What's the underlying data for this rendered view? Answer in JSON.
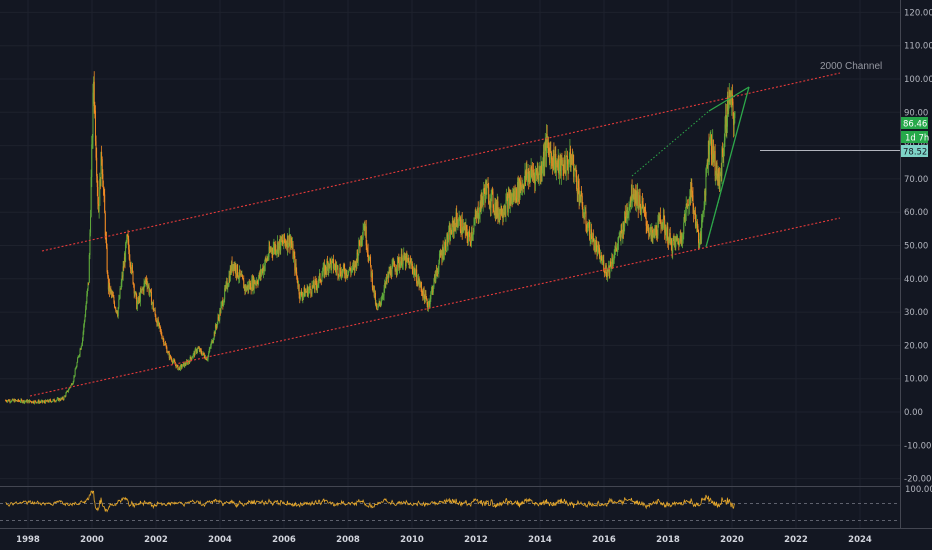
{
  "colors": {
    "background": "#131722",
    "grid": "#1e222d",
    "up": "#5fa83a",
    "down": "#ef8a24",
    "channel": "#e63a3a",
    "wedge": "#2ea84a",
    "wedge_dotted": "#2ea84a",
    "rsi": "#e8a92b",
    "badge_green": "#26a94a",
    "badge_teal": "#7ed3c7",
    "axis_text": "#b2b5be"
  },
  "chart_data": {
    "type": "candlestick",
    "x_axis": {
      "unit": "year",
      "range": [
        1997.3,
        2025.5
      ],
      "tick_labels": [
        "1998",
        "2000",
        "2002",
        "2004",
        "2006",
        "2008",
        "2010",
        "2012",
        "2014",
        "2016",
        "2018",
        "2020",
        "2022",
        "2024"
      ]
    },
    "y_axis": {
      "unit": "price",
      "range": [
        -27,
        123
      ],
      "tick_labels": [
        "120.00",
        "110.00",
        "100.00",
        "90.00",
        "80.00",
        "70.00",
        "60.00",
        "50.00",
        "40.00",
        "30.00",
        "20.00",
        "10.00",
        "0.00",
        "-10.00",
        "-20.00"
      ]
    },
    "price_path": [
      [
        1997.3,
        3.5
      ],
      [
        1998.5,
        3
      ],
      [
        1999.1,
        4
      ],
      [
        1999.4,
        9
      ],
      [
        1999.7,
        22
      ],
      [
        1999.9,
        40
      ],
      [
        2000.05,
        100
      ],
      [
        2000.2,
        60
      ],
      [
        2000.3,
        78
      ],
      [
        2000.5,
        38
      ],
      [
        2000.8,
        30
      ],
      [
        2001.1,
        52
      ],
      [
        2001.4,
        32
      ],
      [
        2001.7,
        40
      ],
      [
        2002.0,
        28
      ],
      [
        2002.4,
        17
      ],
      [
        2002.7,
        13
      ],
      [
        2003.0,
        15
      ],
      [
        2003.3,
        19
      ],
      [
        2003.6,
        16
      ],
      [
        2004.0,
        30
      ],
      [
        2004.4,
        45
      ],
      [
        2004.8,
        37
      ],
      [
        2005.2,
        40
      ],
      [
        2005.6,
        49
      ],
      [
        2006.2,
        52
      ],
      [
        2006.5,
        35
      ],
      [
        2007.0,
        38
      ],
      [
        2007.4,
        45
      ],
      [
        2007.8,
        42
      ],
      [
        2008.2,
        43
      ],
      [
        2008.5,
        57
      ],
      [
        2008.9,
        30
      ],
      [
        2009.3,
        42
      ],
      [
        2009.7,
        46
      ],
      [
        2010.0,
        44
      ],
      [
        2010.5,
        32
      ],
      [
        2010.9,
        47
      ],
      [
        2011.4,
        58
      ],
      [
        2011.8,
        52
      ],
      [
        2012.3,
        67
      ],
      [
        2012.7,
        60
      ],
      [
        2013.2,
        65
      ],
      [
        2013.6,
        71
      ],
      [
        2014.0,
        72
      ],
      [
        2014.2,
        80
      ],
      [
        2014.6,
        73
      ],
      [
        2015.0,
        76
      ],
      [
        2015.4,
        58
      ],
      [
        2015.8,
        48
      ],
      [
        2016.1,
        42
      ],
      [
        2016.5,
        52
      ],
      [
        2016.9,
        67
      ],
      [
        2017.2,
        61
      ],
      [
        2017.5,
        52
      ],
      [
        2017.8,
        58
      ],
      [
        2018.1,
        50
      ],
      [
        2018.4,
        52
      ],
      [
        2018.7,
        67
      ],
      [
        2019.0,
        50
      ],
      [
        2019.3,
        83
      ],
      [
        2019.6,
        68
      ],
      [
        2019.9,
        95
      ],
      [
        2020.1,
        86.46
      ]
    ],
    "rsi_panel": {
      "axis_label": "100.00",
      "upper_band": 70,
      "lower_band": 30
    },
    "annotations": {
      "channel_label": "2000 Channel",
      "badges": [
        "86.46",
        "1d 7h",
        "78.52"
      ],
      "horizontal_level": 78.52
    }
  }
}
